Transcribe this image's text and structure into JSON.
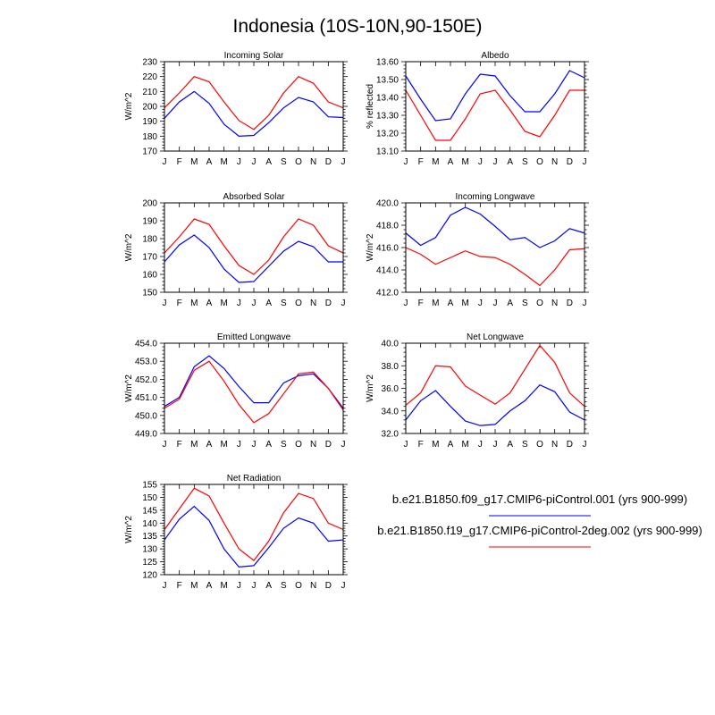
{
  "page_title": "Indonesia (10S-10N,90-150E)",
  "colors": {
    "series_1": "#0000ff",
    "series_2": "#ff0000"
  },
  "legend": [
    {
      "label": "b.e21.B1850.f09_g17.CMIP6-piControl.001 (yrs 900-999)",
      "color": "#0000ff"
    },
    {
      "label": "b.e21.B1850.f19_g17.CMIP6-piControl-2deg.002 (yrs 900-999)",
      "color": "#ff0000"
    }
  ],
  "chart_data": [
    {
      "type": "line",
      "title": "Incoming Solar",
      "ylabel": "W/m^2",
      "categories": [
        "J",
        "F",
        "M",
        "A",
        "M",
        "J",
        "J",
        "A",
        "S",
        "O",
        "N",
        "D",
        "J"
      ],
      "ylim": [
        170,
        230
      ],
      "yticks": [
        170,
        180,
        190,
        200,
        210,
        220,
        230
      ],
      "ytick_labels": [
        "170",
        "180",
        "190",
        "200",
        "210",
        "220",
        "230"
      ],
      "series": [
        {
          "color": "#0000ff",
          "values": [
            192,
            203,
            210,
            202,
            188,
            180,
            180.5,
            189,
            199,
            206,
            203,
            193,
            192.5
          ]
        },
        {
          "color": "#ff0000",
          "values": [
            199,
            209,
            220,
            216.5,
            203,
            190.5,
            184.5,
            194,
            209,
            220,
            215.5,
            203,
            199
          ]
        }
      ]
    },
    {
      "type": "line",
      "title": "Albedo",
      "ylabel": "% reflected",
      "categories": [
        "J",
        "F",
        "M",
        "A",
        "M",
        "J",
        "J",
        "A",
        "S",
        "O",
        "N",
        "D",
        "J"
      ],
      "ylim": [
        13.1,
        13.6
      ],
      "yticks": [
        13.1,
        13.2,
        13.3,
        13.4,
        13.5,
        13.6
      ],
      "ytick_labels": [
        "13.10",
        "13.20",
        "13.30",
        "13.40",
        "13.50",
        "13.60"
      ],
      "series": [
        {
          "color": "#0000ff",
          "values": [
            13.52,
            13.39,
            13.27,
            13.28,
            13.42,
            13.53,
            13.52,
            13.41,
            13.32,
            13.32,
            13.42,
            13.55,
            13.51
          ]
        },
        {
          "color": "#ff0000",
          "values": [
            13.44,
            13.3,
            13.16,
            13.16,
            13.28,
            13.42,
            13.44,
            13.33,
            13.21,
            13.18,
            13.3,
            13.44,
            13.44
          ]
        }
      ]
    },
    {
      "type": "line",
      "title": "Absorbed Solar",
      "ylabel": "W/m^2",
      "categories": [
        "J",
        "F",
        "M",
        "A",
        "M",
        "J",
        "J",
        "A",
        "S",
        "O",
        "N",
        "D",
        "J"
      ],
      "ylim": [
        150,
        200
      ],
      "yticks": [
        150,
        160,
        170,
        180,
        190,
        200
      ],
      "ytick_labels": [
        "150",
        "160",
        "170",
        "180",
        "190",
        "200"
      ],
      "series": [
        {
          "color": "#0000ff",
          "values": [
            167,
            176.5,
            182,
            175,
            163,
            155.5,
            156,
            164.5,
            173,
            178.5,
            175.5,
            167,
            167
          ]
        },
        {
          "color": "#ff0000",
          "values": [
            172,
            181,
            191,
            188,
            176,
            165,
            160,
            168,
            181,
            191,
            187.5,
            176,
            172
          ]
        }
      ]
    },
    {
      "type": "line",
      "title": "Incoming Longwave",
      "ylabel": "W/m^2",
      "categories": [
        "J",
        "F",
        "M",
        "A",
        "M",
        "J",
        "J",
        "A",
        "S",
        "O",
        "N",
        "D",
        "J"
      ],
      "ylim": [
        412.0,
        420.0
      ],
      "yticks": [
        412.0,
        414.0,
        416.0,
        418.0,
        420.0
      ],
      "ytick_labels": [
        "412.0",
        "414.0",
        "416.0",
        "418.0",
        "420.0"
      ],
      "series": [
        {
          "color": "#0000ff",
          "values": [
            417.3,
            416.2,
            416.9,
            418.9,
            419.6,
            419.0,
            417.9,
            416.7,
            416.9,
            416.0,
            416.6,
            417.7,
            417.3
          ]
        },
        {
          "color": "#ff0000",
          "values": [
            416.0,
            415.4,
            414.5,
            415.1,
            415.7,
            415.2,
            415.1,
            414.5,
            413.6,
            412.6,
            414.0,
            415.8,
            415.9
          ]
        }
      ]
    },
    {
      "type": "line",
      "title": "Emitted Longwave",
      "ylabel": "W/m^2",
      "categories": [
        "J",
        "F",
        "M",
        "A",
        "M",
        "J",
        "J",
        "A",
        "S",
        "O",
        "N",
        "D",
        "J"
      ],
      "ylim": [
        449.0,
        454.0
      ],
      "yticks": [
        449.0,
        450.0,
        451.0,
        452.0,
        453.0,
        454.0
      ],
      "ytick_labels": [
        "449.0",
        "450.0",
        "451.0",
        "452.0",
        "453.0",
        "454.0"
      ],
      "series": [
        {
          "color": "#0000ff",
          "values": [
            450.5,
            451.0,
            452.7,
            453.3,
            452.6,
            451.6,
            450.7,
            450.7,
            451.8,
            452.2,
            452.3,
            451.5,
            450.4
          ]
        },
        {
          "color": "#ff0000",
          "values": [
            450.4,
            450.9,
            452.5,
            453.0,
            451.9,
            450.6,
            449.6,
            450.1,
            451.2,
            452.3,
            452.4,
            451.5,
            450.3
          ]
        }
      ]
    },
    {
      "type": "line",
      "title": "Net Longwave",
      "ylabel": "W/m^2",
      "categories": [
        "J",
        "F",
        "M",
        "A",
        "M",
        "J",
        "J",
        "A",
        "S",
        "O",
        "N",
        "D",
        "J"
      ],
      "ylim": [
        32.0,
        40.0
      ],
      "yticks": [
        32.0,
        34.0,
        36.0,
        38.0,
        40.0
      ],
      "ytick_labels": [
        "32.0",
        "34.0",
        "36.0",
        "38.0",
        "40.0"
      ],
      "series": [
        {
          "color": "#0000ff",
          "values": [
            33.2,
            34.9,
            35.8,
            34.4,
            33.1,
            32.7,
            32.8,
            34.0,
            34.9,
            36.3,
            35.7,
            33.9,
            33.2
          ]
        },
        {
          "color": "#ff0000",
          "values": [
            34.5,
            35.6,
            38.0,
            37.9,
            36.2,
            35.4,
            34.6,
            35.6,
            37.7,
            39.8,
            38.3,
            35.6,
            34.4
          ]
        }
      ]
    },
    {
      "type": "line",
      "title": "Net Radiation",
      "ylabel": "W/m^2",
      "categories": [
        "J",
        "F",
        "M",
        "A",
        "M",
        "J",
        "J",
        "A",
        "S",
        "O",
        "N",
        "D",
        "J"
      ],
      "ylim": [
        120,
        155
      ],
      "yticks": [
        120,
        125,
        130,
        135,
        140,
        145,
        150,
        155
      ],
      "ytick_labels": [
        "120",
        "125",
        "130",
        "135",
        "140",
        "145",
        "150",
        "155"
      ],
      "series": [
        {
          "color": "#0000ff",
          "values": [
            133.5,
            141.5,
            146.5,
            141,
            130,
            123,
            123.5,
            130.5,
            138,
            142,
            140,
            133,
            133.5
          ]
        },
        {
          "color": "#ff0000",
          "values": [
            137.5,
            145.5,
            153.5,
            150.5,
            140,
            130,
            125.5,
            133,
            144,
            151.5,
            149.5,
            140,
            137.5
          ]
        }
      ]
    }
  ]
}
